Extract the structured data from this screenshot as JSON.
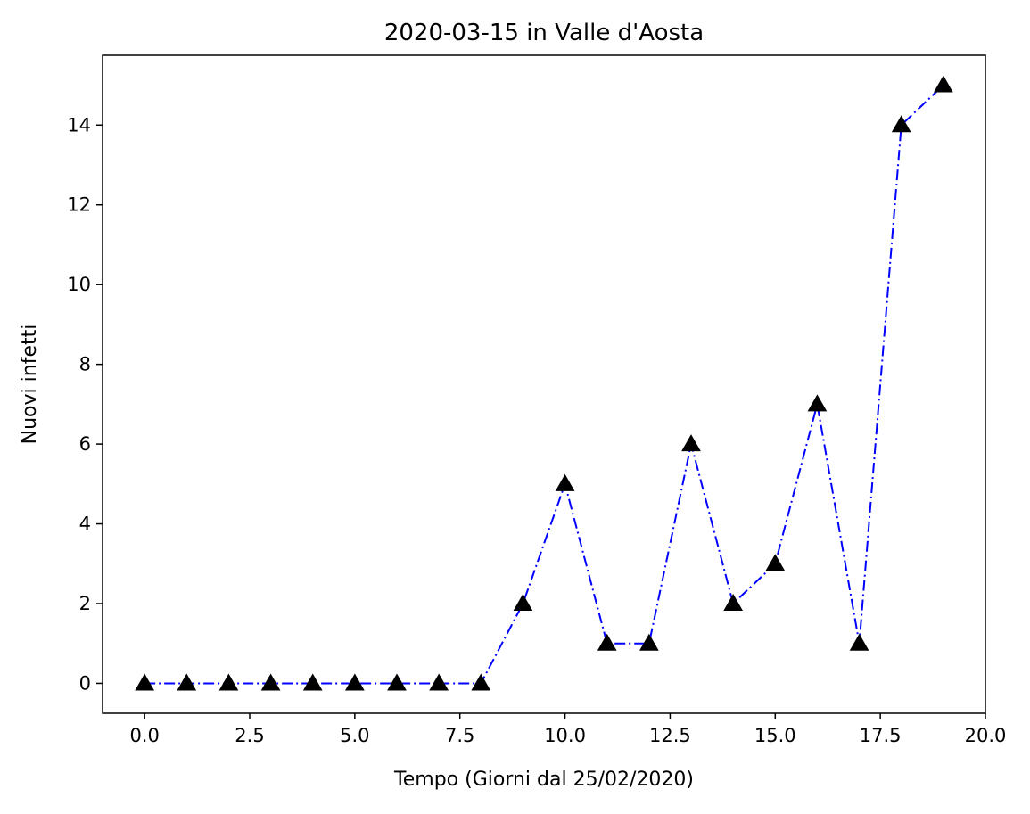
{
  "chart_data": {
    "type": "line",
    "title": "2020-03-15 in Valle d'Aosta",
    "xlabel": "Tempo (Giorni dal 25/02/2020)",
    "ylabel": "Nuovi infetti",
    "xlim": [
      -1,
      20
    ],
    "ylim": [
      -0.75,
      15.75
    ],
    "xticks": [
      0.0,
      2.5,
      5.0,
      7.5,
      10.0,
      12.5,
      15.0,
      17.5,
      20.0
    ],
    "xtick_labels": [
      "0.0",
      "2.5",
      "5.0",
      "7.5",
      "10.0",
      "12.5",
      "15.0",
      "17.5",
      "20.0"
    ],
    "yticks": [
      0,
      2,
      4,
      6,
      8,
      10,
      12,
      14
    ],
    "ytick_labels": [
      "0",
      "2",
      "4",
      "6",
      "8",
      "10",
      "12",
      "14"
    ],
    "grid": false,
    "legend": null,
    "series": [
      {
        "x": [
          0,
          1,
          2,
          3,
          4,
          5,
          6,
          7,
          8,
          9,
          10,
          11,
          12,
          13,
          14,
          15,
          16,
          17,
          18,
          19
        ],
        "y": [
          0,
          0,
          0,
          0,
          0,
          0,
          0,
          0,
          0,
          2,
          5,
          1,
          1,
          6,
          2,
          3,
          7,
          1,
          14,
          15
        ],
        "line_color": "#0000ff",
        "line_style": "dash-dot",
        "marker": "triangle-up",
        "marker_color": "#000000"
      }
    ]
  }
}
